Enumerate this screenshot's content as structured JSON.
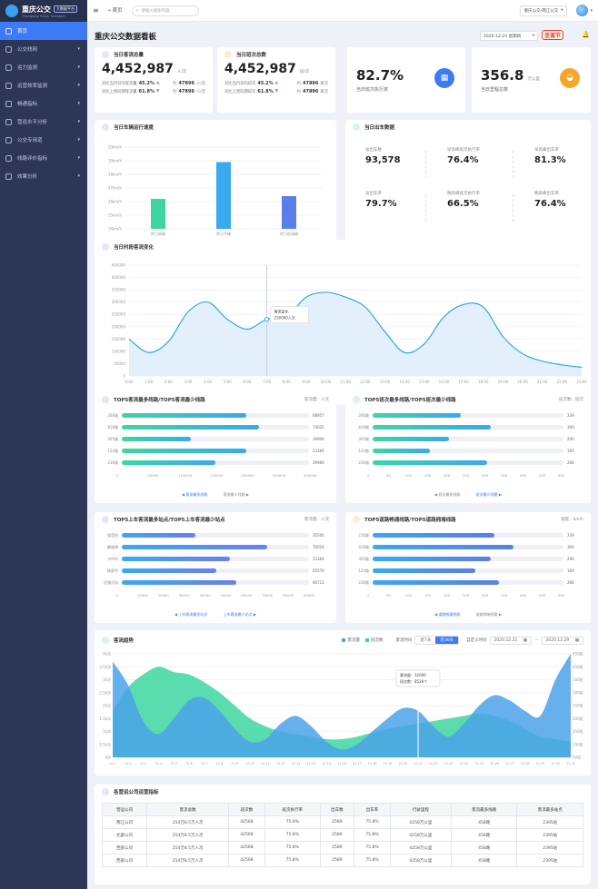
{
  "app": {
    "title": "重庆公交",
    "tag": "大数据平台",
    "subtitle": "Chongqing Public Transport"
  },
  "sidebar": {
    "items": [
      {
        "label": "首页",
        "active": true,
        "caret": ""
      },
      {
        "label": "公交线网",
        "caret": "▾"
      },
      {
        "label": "运力监测",
        "caret": "▾"
      },
      {
        "label": "运营效率监测",
        "caret": "▾"
      },
      {
        "label": "畅通指标",
        "caret": "▾"
      },
      {
        "label": "营运水平分析",
        "caret": "▾"
      },
      {
        "label": "公交专用道",
        "caret": "▾"
      },
      {
        "label": "线路评价指标",
        "caret": "▾"
      },
      {
        "label": "效果分析",
        "caret": "▾"
      }
    ]
  },
  "topbar": {
    "menu_icon": "≡",
    "home_label": "首页",
    "search_placeholder": "请输入搜索内容",
    "company": "重庆公交-两江公交",
    "company_caret": "▾"
  },
  "page": {
    "title": "重庆公交数据看板",
    "date": "2020-12-24 星期四",
    "date_caret": "▾",
    "holiday": "圣诞节",
    "bell": "🔔"
  },
  "kpi_passengers": {
    "title": "当日客流总量",
    "value": "4,452,987",
    "unit": "人/次",
    "row1_label": "对比当月日均客流量",
    "row1_pct": "45.2%",
    "row1_arrow": "▲",
    "row1_about": "约",
    "row1_amount": "47896",
    "row1_amount_unit": "人/次",
    "row2_label": "对比上周同期客流量",
    "row2_pct": "61.8%",
    "row2_arrow": "▼",
    "row2_about": "约",
    "row2_amount": "47896",
    "row2_amount_unit": "人/次"
  },
  "kpi_trips": {
    "title": "当日班次总数",
    "value": "4,452,987",
    "unit": "班/次",
    "row1_label": "对比当月日均班次",
    "row1_pct": "45.2%",
    "row1_arrow": "▲",
    "row1_about": "约",
    "row1_amount": "47896",
    "row1_amount_unit": "班次",
    "row2_label": "对比上周同期班次",
    "row2_pct": "61.8%",
    "row2_arrow": "▼",
    "row2_about": "约",
    "row2_amount": "47896",
    "row2_amount_unit": "班次"
  },
  "kpi_exec": {
    "value": "82.7%",
    "label": "当日班次执行率",
    "icon": "▦",
    "color": "#3d7af5"
  },
  "kpi_mileage": {
    "value": "356.8",
    "unit": "万公里",
    "label": "当日里程总数",
    "icon": "◒",
    "color": "#f4a62a"
  },
  "speed_panel": {
    "title": "当日车辆运行速度",
    "y_ticks": [
      "20km/h",
      "19km/h",
      "18km/h",
      "17km/h",
      "16km/h",
      "15km/h",
      "14km/h"
    ]
  },
  "dispatch_panel": {
    "title": "当日出车数据",
    "stats": [
      {
        "label": "总出车数",
        "value": "93,578"
      },
      {
        "label": "早高峰班次执行率",
        "value": "76.4%"
      },
      {
        "label": "早高峰出车率",
        "value": "81.3%"
      },
      {
        "label": "总出车率",
        "value": "79.7%"
      },
      {
        "label": "晚高峰班次执行率",
        "value": "66.5%"
      },
      {
        "label": "晚高峰出车率",
        "value": "76.4%"
      }
    ]
  },
  "hourly_panel": {
    "title": "当日时段客流变化",
    "tooltip_title": "客流变化",
    "tooltip_value": "230000人次",
    "y_ticks": [
      "450000",
      "400000",
      "350000",
      "300000",
      "250000",
      "200000",
      "150000",
      "100000",
      "50000",
      "0"
    ]
  },
  "top_lines_panel": {
    "title": "TOP5客流最多线路/TOP5客流最少线路",
    "unit": "客流量：人次",
    "x_ticks": [
      "0",
      "50000",
      "100000",
      "150000",
      "200000",
      "250000",
      "300000"
    ],
    "link_left": "◀ 客流最多线路",
    "link_right": "客流最少线路 ▶"
  },
  "top_trips_panel": {
    "title": "TOP5班次最多线路/TOP5班次最少线路",
    "unit": "班次数：班次",
    "x_ticks": [
      "0",
      "50",
      "100",
      "150",
      "200",
      "250",
      "300",
      "350",
      "400",
      "450",
      "500"
    ],
    "link_left": "◀ 班次最多线路",
    "link_right": "班次最少线路 ▶"
  },
  "top_stations_panel": {
    "title": "TOP5上车客流最多站点/TOP5上车客流最少站点",
    "unit": "客流量：人次",
    "x_ticks": [
      "0",
      "10000",
      "20000",
      "30000",
      "40000",
      "50000",
      "60000",
      "70000",
      "80000",
      "90000"
    ],
    "link_left": "◀ 上车客流最多站点",
    "link_right": "上车客流最少站点 ▶"
  },
  "top_speed_panel": {
    "title": "TOP5道路畅通线路/TOP5道路拥堵线路",
    "unit": "速度：km/h",
    "x_ticks": [
      "0",
      "50",
      "100",
      "150",
      "200",
      "250",
      "300",
      "350",
      "400",
      "450",
      "500"
    ],
    "link_left": "◀ 道路畅通线路",
    "link_right": "道路拥堵线路 ▶"
  },
  "trend_panel": {
    "title": "客流趋势",
    "legend_a": "客流量",
    "legend_b": "班次数",
    "toggle_label": "客流时间",
    "toggle_7": "近7天",
    "toggle_30": "近30天",
    "range_label": "自定义时间",
    "range_start": "2020.12.21",
    "range_sep": "—",
    "range_end": "2020.12.29",
    "tooltip_a": "客流量：32000",
    "tooltip_b": "班次数：8526个",
    "y_left": [
      "4k次",
      "3.5k次",
      "3k次",
      "2.5k次",
      "2k次",
      "1.5k次",
      "1k次",
      "0.5k次",
      "0次"
    ],
    "y_right": [
      "450班",
      "400班",
      "350班",
      "300班",
      "250班",
      "200班",
      "150班",
      "100班",
      "50班"
    ],
    "x_ticks": [
      "12-1",
      "12-2",
      "12-3",
      "12-4",
      "12-5",
      "12-6",
      "12-7",
      "12-8",
      "12-9",
      "12-10",
      "12-11",
      "12-12",
      "12-13",
      "12-14",
      "12-15",
      "12-16",
      "12-17",
      "12-18",
      "12-19",
      "12-20",
      "12-21",
      "12-22",
      "12-23",
      "12-24",
      "12-25",
      "12-26",
      "12-27",
      "12-28",
      "12-29",
      "12-30",
      "12-31"
    ]
  },
  "table_panel": {
    "title": "各营运公司运营指标",
    "headers": [
      "营运公司",
      "客流总数",
      "班次数",
      "班次执行率",
      "出车数",
      "出车率",
      "行驶里程",
      "客流最多线路",
      "客流最多站点"
    ],
    "rows": [
      [
        "两江公司",
        "254万8.5万人次",
        "42568",
        "75.8%",
        "2589",
        "75.8%",
        "4258万公里",
        "458路",
        "2395站"
      ],
      [
        "北部公司",
        "254万8.5万人次",
        "42568",
        "75.8%",
        "2589",
        "75.8%",
        "4258万公里",
        "458路",
        "2395站"
      ],
      [
        "西部公司",
        "254万8.5万人次",
        "42568",
        "75.8%",
        "2589",
        "75.8%",
        "4258万公里",
        "458路",
        "2395站"
      ],
      [
        "西部公司",
        "254万8.5万人次",
        "42568",
        "75.8%",
        "2589",
        "75.8%",
        "4258万公里",
        "458路",
        "2395站"
      ]
    ]
  },
  "chart_data": [
    {
      "type": "bar",
      "title": "当日车辆运行速度",
      "categories": [
        "昨日高峰",
        "昨日平峰",
        "昨日低高峰"
      ],
      "values": [
        16.2,
        18.9,
        16.4
      ],
      "colors": [
        "#3ed6a0",
        "#3aaaf0",
        "#5b7fe8"
      ],
      "ylim": [
        14,
        20
      ]
    },
    {
      "type": "area",
      "title": "当日时段客流变化",
      "x": [
        "0:00",
        "1:00",
        "2:00",
        "3:00",
        "4:00",
        "5:00",
        "6:00",
        "7:00",
        "8:00",
        "9:00",
        "10:00",
        "11:00",
        "12:00",
        "13:00",
        "14:00",
        "15:00",
        "16:00",
        "17:00",
        "18:00",
        "19:00",
        "20:00",
        "21:00",
        "22:00",
        "23:00"
      ],
      "values": [
        150000,
        95000,
        140000,
        260000,
        300000,
        230000,
        190000,
        230000,
        240000,
        320000,
        340000,
        320000,
        280000,
        180000,
        95000,
        130000,
        240000,
        290000,
        280000,
        160000,
        90000,
        60000,
        45000,
        35000
      ],
      "ylim": [
        0,
        450000
      ]
    },
    {
      "type": "bar",
      "title": "TOP5客流最多线路/TOP5客流最少线路",
      "categories": [
        "266路",
        "818路",
        "305路",
        "124路",
        "236路"
      ],
      "values": [
        68957,
        74025,
        39944,
        53366,
        39969
      ],
      "bar_length_values": [
        200000,
        220000,
        110000,
        200000,
        150000
      ],
      "xlim": [
        0,
        300000
      ]
    },
    {
      "type": "bar",
      "title": "TOP5班次最多线路/TOP5班次最少线路",
      "categories": [
        "266路",
        "818路",
        "305路",
        "124路",
        "236路"
      ],
      "values": [
        239,
        390,
        200,
        160,
        284
      ],
      "bar_length_values": [
        230,
        310,
        200,
        150,
        300
      ],
      "xlim": [
        0,
        500
      ]
    },
    {
      "type": "bar",
      "title": "TOP5上车客流最多站点/TOP5上车客流最少站点",
      "categories": [
        "观音桥",
        "解放碑",
        "沙坪坝",
        "杨家坪",
        "红旗河沟"
      ],
      "values": [
        35500,
        70016,
        53364,
        45570,
        66712
      ],
      "bar_length_values": [
        35500,
        70016,
        52000,
        45570,
        55000
      ],
      "xlim": [
        0,
        90000
      ]
    },
    {
      "type": "bar",
      "title": "TOP5道路畅通线路/TOP5道路拥堵线路",
      "categories": [
        "216路",
        "818路",
        "305路",
        "124路",
        "236路"
      ],
      "values": [
        239,
        390,
        200,
        169,
        284
      ],
      "bar_length_values": [
        320,
        370,
        310,
        270,
        330
      ],
      "xlim": [
        0,
        500
      ]
    },
    {
      "type": "area",
      "title": "客流趋势",
      "x": [
        "12-1",
        "12-2",
        "12-3",
        "12-4",
        "12-5",
        "12-6",
        "12-7",
        "12-8",
        "12-9",
        "12-10",
        "12-11",
        "12-12",
        "12-13",
        "12-14",
        "12-15",
        "12-16",
        "12-17",
        "12-18",
        "12-19",
        "12-20",
        "12-21",
        "12-22",
        "12-23",
        "12-24",
        "12-25",
        "12-26",
        "12-27",
        "12-28",
        "12-29",
        "12-30",
        "12-31"
      ],
      "series": [
        {
          "name": "客流量",
          "color": "#4ba3e8",
          "values": [
            3.7,
            2.8,
            1.4,
            0.9,
            1.5,
            2.2,
            2.3,
            1.8,
            1.1,
            0.6,
            0.7,
            1.3,
            1.6,
            1.2,
            0.6,
            0.3,
            0.5,
            1.0,
            1.5,
            1.9,
            1.8,
            1.2,
            0.8,
            1.3,
            2.0,
            2.4,
            2.2,
            1.8,
            1.6,
            3.0,
            4.0
          ]
        },
        {
          "name": "班次数",
          "color": "#3ed6a0",
          "values": [
            230,
            320,
            370,
            400,
            380,
            370,
            340,
            300,
            250,
            200,
            170,
            150,
            140,
            130,
            120,
            120,
            130,
            145,
            160,
            170,
            180,
            190,
            200,
            210,
            220,
            210,
            190,
            160,
            130,
            120,
            110
          ]
        }
      ],
      "ylim_left": [
        0,
        4
      ],
      "ylim_right": [
        50,
        450
      ]
    }
  ]
}
